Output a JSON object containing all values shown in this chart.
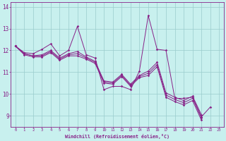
{
  "xlabel": "Windchill (Refroidissement éolien,°C)",
  "background_color": "#c8f0ee",
  "line_color": "#882288",
  "grid_color": "#99cccc",
  "xlim": [
    -0.5,
    23.5
  ],
  "ylim": [
    8.5,
    14.2
  ],
  "xticks": [
    0,
    1,
    2,
    3,
    4,
    5,
    6,
    7,
    8,
    9,
    10,
    11,
    12,
    13,
    14,
    15,
    16,
    17,
    18,
    19,
    20,
    21,
    22,
    23
  ],
  "yticks": [
    9,
    10,
    11,
    12,
    13,
    14
  ],
  "lines": [
    [
      12.2,
      11.9,
      11.85,
      12.05,
      12.3,
      11.75,
      12.0,
      13.1,
      11.8,
      11.65,
      10.2,
      10.35,
      10.35,
      10.2,
      11.05,
      13.6,
      12.05,
      12.0,
      9.8,
      9.8,
      9.85,
      8.95,
      9.4,
      null
    ],
    [
      12.2,
      11.85,
      11.75,
      11.8,
      12.0,
      11.65,
      11.85,
      11.95,
      11.7,
      11.5,
      10.6,
      10.55,
      10.9,
      10.45,
      10.85,
      11.05,
      11.45,
      10.05,
      9.85,
      9.7,
      9.9,
      9.05,
      null,
      null
    ],
    [
      12.2,
      11.85,
      11.75,
      11.75,
      11.95,
      11.6,
      11.8,
      11.85,
      11.65,
      11.45,
      10.55,
      10.5,
      10.85,
      10.4,
      10.8,
      10.95,
      11.35,
      9.95,
      9.75,
      9.6,
      9.8,
      8.9,
      null,
      null
    ],
    [
      12.2,
      11.8,
      11.7,
      11.7,
      11.9,
      11.55,
      11.75,
      11.75,
      11.6,
      11.4,
      10.5,
      10.45,
      10.8,
      10.35,
      10.75,
      10.85,
      11.25,
      9.85,
      9.65,
      9.5,
      9.7,
      8.8,
      null,
      null
    ]
  ]
}
